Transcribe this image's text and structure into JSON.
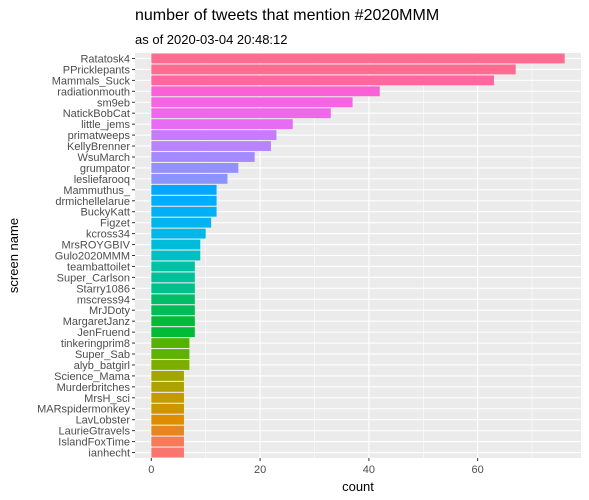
{
  "chart_data": {
    "type": "bar",
    "orientation": "horizontal",
    "title": "number of tweets that mention #2020MMM",
    "subtitle": "as of 2020-03-04 20:48:12",
    "xlabel": "count",
    "ylabel": "screen name",
    "xlim": [
      -3,
      79
    ],
    "xticks": [
      0,
      20,
      40,
      60
    ],
    "grid": true,
    "legend": "none",
    "panel_background": "#ebebeb",
    "grid_color": "#ffffff",
    "categories": [
      "Ratatosk4",
      "PPricklepants",
      "Mammals_Suck",
      "radiationmouth",
      "sm9eb",
      "NatickBobCat",
      "little_jems",
      "primatweeps",
      "KellyBrenner",
      "WsuMarch",
      "grumpator",
      "lesliefarooq",
      "Mammuthus_",
      "drmichellelarue",
      "BuckyKatt",
      "Figzet",
      "kcross34",
      "MrsROYGBIV",
      "Gulo2020MMM",
      "teambattoilet",
      "Super_Carlson",
      "Starry1086",
      "mscress94",
      "MrJDoty",
      "MargaretJanz",
      "JenFruend",
      "tinkeringprim8",
      "Super_Sab",
      "alyb_batgirl",
      "Science_Mama",
      "Murderbritches",
      "MrsH_sci",
      "MARspidermonkey",
      "LavLobster",
      "LaurieGtravels",
      "IslandFoxTime",
      "ianhecht"
    ],
    "values": [
      76,
      67,
      63,
      42,
      37,
      33,
      26,
      23,
      22,
      19,
      16,
      14,
      12,
      12,
      12,
      11,
      10,
      9,
      9,
      8,
      8,
      8,
      8,
      8,
      8,
      8,
      7,
      7,
      7,
      6,
      6,
      6,
      6,
      6,
      6,
      6,
      6
    ],
    "colors": [
      "#FF6C91",
      "#FF6C91",
      "#FF689F",
      "#FB61D7",
      "#F564E3",
      "#EF67EB",
      "#E76BF3",
      "#C77CFF",
      "#B983FF",
      "#A58AFF",
      "#9590FF",
      "#8B93FF",
      "#00A9FF",
      "#00ADFA",
      "#00B0F6",
      "#00B4EF",
      "#00B8E7",
      "#00BCD8",
      "#00BFC4",
      "#00C1A3",
      "#00C19A",
      "#00C08B",
      "#00BE67",
      "#00BC56",
      "#00BA38",
      "#00BA38",
      "#53B400",
      "#5EB300",
      "#7CAE00",
      "#A3A500",
      "#AEA200",
      "#C49A00",
      "#CD9600",
      "#DE8C00",
      "#E7851E",
      "#F37B59",
      "#F8766D"
    ]
  }
}
